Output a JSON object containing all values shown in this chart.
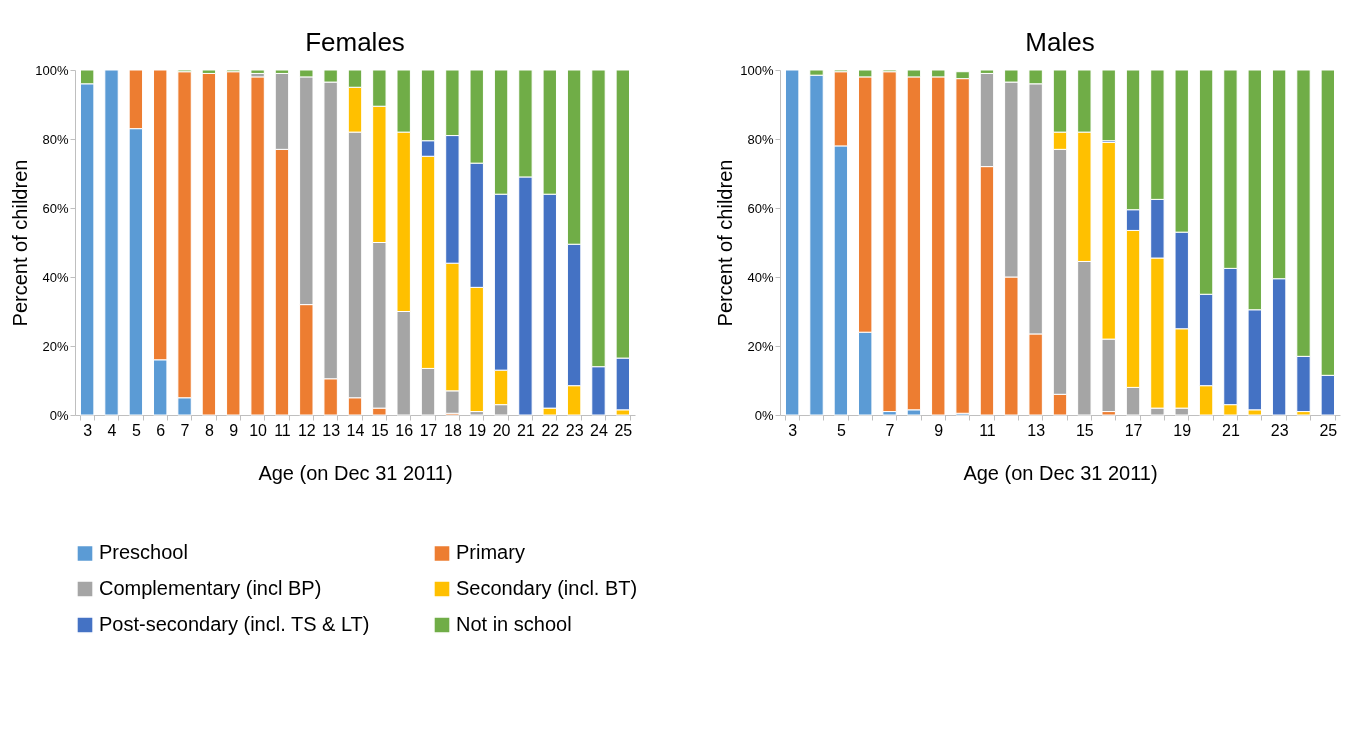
{
  "chart_data": [
    {
      "type": "bar",
      "title": "Females",
      "xlabel": "Age (on Dec 31 2011)",
      "ylabel": "Percent of children",
      "stacked": true,
      "grid": false,
      "legend": "bottom",
      "categories": [
        "3",
        "4",
        "5",
        "6",
        "7",
        "8",
        "9",
        "10",
        "11",
        "12",
        "13",
        "14",
        "15",
        "16",
        "17",
        "18",
        "19",
        "20",
        "21",
        "22",
        "23",
        "24",
        "25"
      ],
      "ylim": [
        0,
        100
      ],
      "yticks": [
        {
          "value": 0,
          "label": "0%"
        },
        {
          "value": 20,
          "label": "20%"
        },
        {
          "value": 40,
          "label": "40%"
        },
        {
          "value": 60,
          "label": "60%"
        },
        {
          "value": 80,
          "label": "80%"
        },
        {
          "value": 100,
          "label": "100%"
        }
      ],
      "series": [
        {
          "name": "Preschool",
          "color": "#5b9bd5",
          "values": [
            96,
            100,
            83,
            16,
            5,
            null,
            null,
            null,
            null,
            null,
            null,
            null,
            null,
            null,
            null,
            null,
            null,
            null,
            null,
            null,
            null,
            null,
            null
          ]
        },
        {
          "name": "Primary",
          "color": "#ed7d31",
          "values": [
            null,
            null,
            17,
            84,
            94.5,
            99,
            99.5,
            98,
            77,
            32,
            10.5,
            5,
            2,
            null,
            null,
            0.5,
            null,
            null,
            null,
            null,
            null,
            null,
            null
          ]
        },
        {
          "name": "Complementary (incl BP)",
          "color": "#a5a5a5",
          "values": [
            null,
            null,
            null,
            null,
            null,
            null,
            null,
            1,
            22,
            66,
            86,
            77,
            48,
            30,
            13.5,
            6.5,
            1,
            3,
            null,
            null,
            null,
            null,
            null
          ]
        },
        {
          "name": "Secondary (incl. BT)",
          "color": "#ffc000",
          "values": [
            null,
            null,
            null,
            null,
            null,
            null,
            null,
            null,
            null,
            null,
            null,
            13,
            39.5,
            52,
            61.5,
            37,
            36,
            10,
            null,
            2,
            8.5,
            null,
            1.5
          ]
        },
        {
          "name": "Post-secondary (incl. TS & LT)",
          "color": "#4472c4",
          "values": [
            null,
            null,
            null,
            null,
            null,
            null,
            null,
            null,
            null,
            null,
            null,
            null,
            null,
            null,
            4.5,
            37,
            36,
            51,
            69,
            62,
            41,
            14,
            15
          ]
        },
        {
          "name": "Not in school",
          "color": "#70ad47",
          "values": [
            4,
            null,
            null,
            null,
            0.5,
            1,
            0.5,
            1,
            1,
            2,
            3.5,
            5,
            10.5,
            18,
            20.5,
            19,
            27,
            36,
            31,
            36,
            50.5,
            86,
            83.5
          ]
        }
      ]
    },
    {
      "type": "bar",
      "title": "Males",
      "xlabel": "Age (on Dec 31 2011)",
      "ylabel": "Percent of children",
      "stacked": true,
      "grid": false,
      "legend": "bottom",
      "categories": [
        "3",
        null,
        "5",
        null,
        "7",
        null,
        "9",
        null,
        "11",
        null,
        "13",
        null,
        "15",
        null,
        "17",
        null,
        "19",
        null,
        "21",
        null,
        "23",
        null,
        "25"
      ],
      "ylim": [
        0,
        100
      ],
      "yticks": [
        {
          "value": 0,
          "label": "0%"
        },
        {
          "value": 20,
          "label": "20%"
        },
        {
          "value": 40,
          "label": "40%"
        },
        {
          "value": 60,
          "label": "60%"
        },
        {
          "value": 80,
          "label": "80%"
        },
        {
          "value": 100,
          "label": "100%"
        }
      ],
      "series": [
        {
          "name": "Preschool",
          "color": "#5b9bd5",
          "values": [
            100,
            98.5,
            78,
            24,
            1,
            1.5,
            null,
            0.5,
            null,
            null,
            null,
            null,
            null,
            null,
            null,
            null,
            null,
            null,
            null,
            null,
            null,
            null,
            null
          ]
        },
        {
          "name": "Primary",
          "color": "#ed7d31",
          "values": [
            null,
            null,
            21.5,
            74,
            98.5,
            96.5,
            98,
            97,
            72,
            40,
            23.5,
            6,
            null,
            1,
            null,
            null,
            null,
            null,
            null,
            null,
            null,
            null,
            null
          ]
        },
        {
          "name": "Complementary (incl BP)",
          "color": "#a5a5a5",
          "values": [
            null,
            null,
            null,
            null,
            null,
            null,
            null,
            null,
            27,
            56.5,
            72.5,
            71,
            44.5,
            21,
            8,
            2,
            2,
            null,
            null,
            null,
            null,
            null,
            null
          ]
        },
        {
          "name": "Secondary (incl. BT)",
          "color": "#ffc000",
          "values": [
            null,
            null,
            null,
            null,
            null,
            null,
            null,
            null,
            null,
            null,
            null,
            5,
            37.5,
            57,
            45.5,
            43.5,
            23,
            8.5,
            3,
            1.5,
            null,
            1,
            null
          ]
        },
        {
          "name": "Post-secondary (incl. TS & LT)",
          "color": "#4472c4",
          "values": [
            null,
            null,
            null,
            null,
            null,
            null,
            null,
            null,
            null,
            null,
            null,
            null,
            null,
            0.5,
            6,
            17,
            28,
            26.5,
            39.5,
            29,
            39.5,
            16,
            11.5
          ]
        },
        {
          "name": "Not in school",
          "color": "#70ad47",
          "values": [
            null,
            1.5,
            0.5,
            2,
            0.5,
            2,
            2,
            2,
            1,
            3.5,
            4,
            18,
            18,
            20.5,
            40.5,
            37.5,
            47,
            65,
            57.5,
            69.5,
            60.5,
            83,
            88.5
          ]
        }
      ]
    }
  ]
}
